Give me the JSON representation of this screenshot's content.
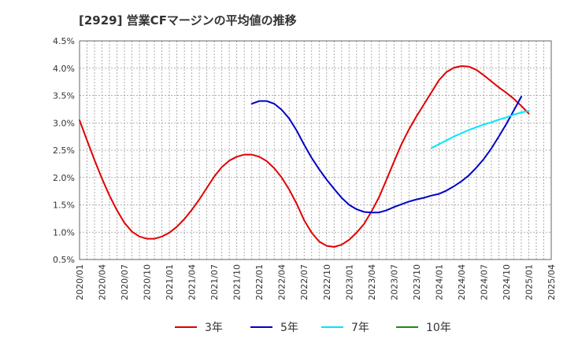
{
  "chart_data": {
    "type": "line",
    "title": "[2929]  営業CFマージンの平均値の推移",
    "xlabel": "",
    "ylabel": "",
    "ylim": [
      0.5,
      4.5
    ],
    "y_ticks": [
      "0.5%",
      "1.0%",
      "1.5%",
      "2.0%",
      "2.5%",
      "3.0%",
      "3.5%",
      "4.0%",
      "4.5%"
    ],
    "x_ticks": [
      "2020/01",
      "2020/04",
      "2020/07",
      "2020/10",
      "2021/01",
      "2021/04",
      "2021/07",
      "2021/10",
      "2022/01",
      "2022/04",
      "2022/07",
      "2022/10",
      "2023/01",
      "2023/04",
      "2023/07",
      "2023/10",
      "2024/01",
      "2024/04",
      "2024/07",
      "2024/10",
      "2025/01",
      "2025/04"
    ],
    "grid": true,
    "legend_position": "bottom",
    "series": [
      {
        "name": "3年",
        "color": "#e00000",
        "points": [
          [
            "2020/01",
            3.05
          ],
          [
            "2020/02",
            2.68
          ],
          [
            "2020/03",
            2.32
          ],
          [
            "2020/04",
            1.98
          ],
          [
            "2020/05",
            1.67
          ],
          [
            "2020/06",
            1.4
          ],
          [
            "2020/07",
            1.17
          ],
          [
            "2020/08",
            1.01
          ],
          [
            "2020/09",
            0.92
          ],
          [
            "2020/10",
            0.88
          ],
          [
            "2020/11",
            0.88
          ],
          [
            "2020/12",
            0.92
          ],
          [
            "2021/01",
            0.99
          ],
          [
            "2021/02",
            1.1
          ],
          [
            "2021/03",
            1.24
          ],
          [
            "2021/04",
            1.41
          ],
          [
            "2021/05",
            1.6
          ],
          [
            "2021/06",
            1.81
          ],
          [
            "2021/07",
            2.02
          ],
          [
            "2021/08",
            2.19
          ],
          [
            "2021/09",
            2.31
          ],
          [
            "2021/10",
            2.38
          ],
          [
            "2021/11",
            2.42
          ],
          [
            "2021/12",
            2.42
          ],
          [
            "2022/01",
            2.38
          ],
          [
            "2022/02",
            2.3
          ],
          [
            "2022/03",
            2.17
          ],
          [
            "2022/04",
            2.0
          ],
          [
            "2022/05",
            1.78
          ],
          [
            "2022/06",
            1.52
          ],
          [
            "2022/07",
            1.22
          ],
          [
            "2022/08",
            0.99
          ],
          [
            "2022/09",
            0.83
          ],
          [
            "2022/10",
            0.75
          ],
          [
            "2022/11",
            0.73
          ],
          [
            "2022/12",
            0.77
          ],
          [
            "2023/01",
            0.86
          ],
          [
            "2023/02",
            0.99
          ],
          [
            "2023/03",
            1.15
          ],
          [
            "2023/04",
            1.38
          ],
          [
            "2023/05",
            1.64
          ],
          [
            "2023/06",
            1.96
          ],
          [
            "2023/07",
            2.29
          ],
          [
            "2023/08",
            2.61
          ],
          [
            "2023/09",
            2.88
          ],
          [
            "2023/10",
            3.12
          ],
          [
            "2023/11",
            3.34
          ],
          [
            "2023/12",
            3.56
          ],
          [
            "2024/01",
            3.78
          ],
          [
            "2024/02",
            3.93
          ],
          [
            "2024/03",
            4.01
          ],
          [
            "2024/04",
            4.04
          ],
          [
            "2024/05",
            4.03
          ],
          [
            "2024/06",
            3.97
          ],
          [
            "2024/07",
            3.87
          ],
          [
            "2024/08",
            3.76
          ],
          [
            "2024/09",
            3.65
          ],
          [
            "2024/10",
            3.55
          ],
          [
            "2024/11",
            3.44
          ],
          [
            "2024/12",
            3.31
          ],
          [
            "2025/01",
            3.17
          ]
        ]
      },
      {
        "name": "5年",
        "color": "#0000c8",
        "points": [
          [
            "2021/12",
            3.35
          ],
          [
            "2022/01",
            3.4
          ],
          [
            "2022/02",
            3.4
          ],
          [
            "2022/03",
            3.35
          ],
          [
            "2022/04",
            3.24
          ],
          [
            "2022/05",
            3.08
          ],
          [
            "2022/06",
            2.86
          ],
          [
            "2022/07",
            2.6
          ],
          [
            "2022/08",
            2.36
          ],
          [
            "2022/09",
            2.15
          ],
          [
            "2022/10",
            1.96
          ],
          [
            "2022/11",
            1.79
          ],
          [
            "2022/12",
            1.63
          ],
          [
            "2023/01",
            1.5
          ],
          [
            "2023/02",
            1.42
          ],
          [
            "2023/03",
            1.37
          ],
          [
            "2023/04",
            1.36
          ],
          [
            "2023/05",
            1.36
          ],
          [
            "2023/06",
            1.4
          ],
          [
            "2023/07",
            1.46
          ],
          [
            "2023/08",
            1.51
          ],
          [
            "2023/09",
            1.56
          ],
          [
            "2023/10",
            1.6
          ],
          [
            "2023/11",
            1.63
          ],
          [
            "2023/12",
            1.67
          ],
          [
            "2024/01",
            1.7
          ],
          [
            "2024/02",
            1.76
          ],
          [
            "2024/03",
            1.84
          ],
          [
            "2024/04",
            1.93
          ],
          [
            "2024/05",
            2.04
          ],
          [
            "2024/06",
            2.18
          ],
          [
            "2024/07",
            2.34
          ],
          [
            "2024/08",
            2.53
          ],
          [
            "2024/09",
            2.75
          ],
          [
            "2024/10",
            2.98
          ],
          [
            "2024/11",
            3.23
          ],
          [
            "2024/12",
            3.48
          ]
        ]
      },
      {
        "name": "7年",
        "color": "#00e5ff",
        "points": [
          [
            "2023/12",
            2.54
          ],
          [
            "2024/01",
            2.61
          ],
          [
            "2024/02",
            2.68
          ],
          [
            "2024/03",
            2.75
          ],
          [
            "2024/04",
            2.81
          ],
          [
            "2024/05",
            2.87
          ],
          [
            "2024/06",
            2.92
          ],
          [
            "2024/07",
            2.97
          ],
          [
            "2024/08",
            3.01
          ],
          [
            "2024/09",
            3.06
          ],
          [
            "2024/10",
            3.1
          ],
          [
            "2024/11",
            3.15
          ],
          [
            "2024/12",
            3.19
          ],
          [
            "2025/01",
            3.22
          ]
        ]
      },
      {
        "name": "10年",
        "color": "#1a8a1a",
        "points": []
      }
    ]
  }
}
